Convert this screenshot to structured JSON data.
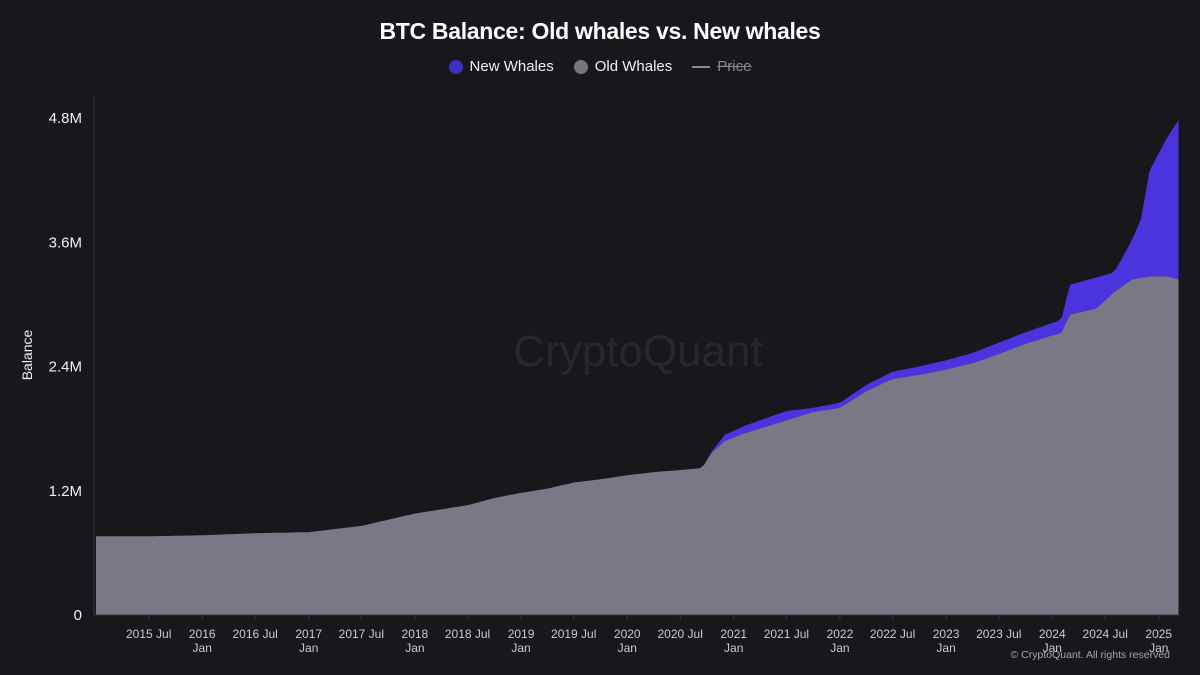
{
  "chart_data": {
    "type": "area",
    "title": "BTC Balance: Old whales vs. New whales",
    "ylabel": "Balance",
    "xlabel": "",
    "ylim": [
      0,
      4800000
    ],
    "xlim": [
      "2014-12-25",
      "2025-03-15"
    ],
    "stacked": true,
    "grid": false,
    "legend_position": "top-center",
    "y_ticks": [
      {
        "value": 0,
        "label": "0"
      },
      {
        "value": 1200000,
        "label": "1.2M"
      },
      {
        "value": 2400000,
        "label": "2.4M"
      },
      {
        "value": 3600000,
        "label": "3.6M"
      },
      {
        "value": 4800000,
        "label": "4.8M"
      }
    ],
    "x_ticks": [
      {
        "date": "2015-07-01",
        "line1": "2015 Jul",
        "line2": ""
      },
      {
        "date": "2016-01-01",
        "line1": "2016",
        "line2": "Jan"
      },
      {
        "date": "2016-07-01",
        "line1": "2016 Jul",
        "line2": ""
      },
      {
        "date": "2017-01-01",
        "line1": "2017",
        "line2": "Jan"
      },
      {
        "date": "2017-07-01",
        "line1": "2017 Jul",
        "line2": ""
      },
      {
        "date": "2018-01-01",
        "line1": "2018",
        "line2": "Jan"
      },
      {
        "date": "2018-07-01",
        "line1": "2018 Jul",
        "line2": ""
      },
      {
        "date": "2019-01-01",
        "line1": "2019",
        "line2": "Jan"
      },
      {
        "date": "2019-07-01",
        "line1": "2019 Jul",
        "line2": ""
      },
      {
        "date": "2020-01-01",
        "line1": "2020",
        "line2": "Jan"
      },
      {
        "date": "2020-07-01",
        "line1": "2020 Jul",
        "line2": ""
      },
      {
        "date": "2021-01-01",
        "line1": "2021",
        "line2": "Jan"
      },
      {
        "date": "2021-07-01",
        "line1": "2021 Jul",
        "line2": ""
      },
      {
        "date": "2022-01-01",
        "line1": "2022",
        "line2": "Jan"
      },
      {
        "date": "2022-07-01",
        "line1": "2022 Jul",
        "line2": ""
      },
      {
        "date": "2023-01-01",
        "line1": "2023",
        "line2": "Jan"
      },
      {
        "date": "2023-07-01",
        "line1": "2023 Jul",
        "line2": ""
      },
      {
        "date": "2024-01-01",
        "line1": "2024",
        "line2": "Jan"
      },
      {
        "date": "2024-07-01",
        "line1": "2024 Jul",
        "line2": ""
      },
      {
        "date": "2025-01-01",
        "line1": "2025",
        "line2": "Jan"
      }
    ],
    "series": [
      {
        "name": "Old Whales",
        "color": "#797884",
        "points": [
          [
            "2015-01-01",
            760000
          ],
          [
            "2015-07-01",
            760000
          ],
          [
            "2016-01-01",
            770000
          ],
          [
            "2016-04-01",
            780000
          ],
          [
            "2016-07-01",
            790000
          ],
          [
            "2017-01-01",
            800000
          ],
          [
            "2017-04-01",
            830000
          ],
          [
            "2017-07-01",
            860000
          ],
          [
            "2017-10-01",
            920000
          ],
          [
            "2018-01-01",
            980000
          ],
          [
            "2018-04-01",
            1020000
          ],
          [
            "2018-07-01",
            1060000
          ],
          [
            "2018-10-01",
            1130000
          ],
          [
            "2019-01-01",
            1180000
          ],
          [
            "2019-04-01",
            1220000
          ],
          [
            "2019-07-01",
            1280000
          ],
          [
            "2019-10-01",
            1310000
          ],
          [
            "2020-01-01",
            1350000
          ],
          [
            "2020-04-01",
            1380000
          ],
          [
            "2020-07-01",
            1400000
          ],
          [
            "2020-09-15",
            1420000
          ],
          [
            "2020-10-15",
            1560000
          ],
          [
            "2020-12-01",
            1680000
          ],
          [
            "2021-02-01",
            1750000
          ],
          [
            "2021-04-01",
            1800000
          ],
          [
            "2021-07-01",
            1880000
          ],
          [
            "2021-10-01",
            1960000
          ],
          [
            "2022-01-01",
            2000000
          ],
          [
            "2022-04-01",
            2160000
          ],
          [
            "2022-07-01",
            2280000
          ],
          [
            "2022-10-01",
            2320000
          ],
          [
            "2023-01-01",
            2370000
          ],
          [
            "2023-04-01",
            2430000
          ],
          [
            "2023-07-01",
            2520000
          ],
          [
            "2023-10-01",
            2620000
          ],
          [
            "2024-01-01",
            2700000
          ],
          [
            "2024-02-01",
            2720000
          ],
          [
            "2024-03-01",
            2900000
          ],
          [
            "2024-06-01",
            2960000
          ],
          [
            "2024-08-01",
            3120000
          ],
          [
            "2024-10-01",
            3240000
          ],
          [
            "2024-12-01",
            3270000
          ],
          [
            "2025-02-01",
            3270000
          ],
          [
            "2025-03-10",
            3240000
          ]
        ]
      },
      {
        "name": "New Whales",
        "color": "#4b34e0",
        "points": [
          [
            "2015-01-01",
            0
          ],
          [
            "2020-09-15",
            0
          ],
          [
            "2020-10-15",
            10000
          ],
          [
            "2020-12-01",
            60000
          ],
          [
            "2021-02-01",
            70000
          ],
          [
            "2021-04-01",
            80000
          ],
          [
            "2021-07-01",
            90000
          ],
          [
            "2021-10-01",
            40000
          ],
          [
            "2022-01-01",
            50000
          ],
          [
            "2022-04-01",
            60000
          ],
          [
            "2022-07-01",
            70000
          ],
          [
            "2022-10-01",
            80000
          ],
          [
            "2023-01-01",
            90000
          ],
          [
            "2023-04-01",
            100000
          ],
          [
            "2023-07-01",
            110000
          ],
          [
            "2023-10-01",
            110000
          ],
          [
            "2024-01-01",
            120000
          ],
          [
            "2024-02-01",
            130000
          ],
          [
            "2024-03-01",
            290000
          ],
          [
            "2024-06-01",
            300000
          ],
          [
            "2024-08-01",
            190000
          ],
          [
            "2024-10-01",
            380000
          ],
          [
            "2024-11-01",
            570000
          ],
          [
            "2024-12-01",
            1030000
          ],
          [
            "2025-02-01",
            1350000
          ],
          [
            "2025-03-10",
            1540000
          ]
        ]
      }
    ],
    "legend": [
      {
        "name": "New Whales",
        "color": "#3f2fc2",
        "style": "dot",
        "visible": true
      },
      {
        "name": "Old Whales",
        "color": "#77767f",
        "style": "dot",
        "visible": true
      },
      {
        "name": "Price",
        "color": "#8a8a92",
        "style": "line",
        "visible": false
      }
    ]
  },
  "watermark": "CryptoQuant",
  "copyright": "© CryptoQuant. All rights reserved"
}
